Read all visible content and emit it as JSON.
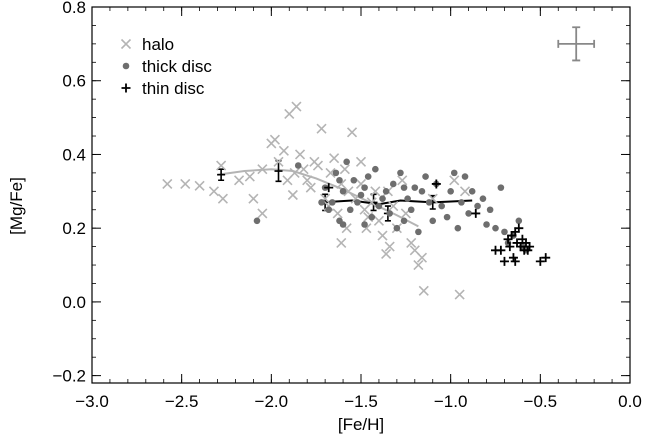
{
  "chart_data": {
    "type": "scatter",
    "xlabel": "[Fe/H]",
    "ylabel": "[Mg/Fe]",
    "xlim": [
      -3.0,
      0.0
    ],
    "ylim": [
      -0.22,
      0.8
    ],
    "xticks": [
      -3.0,
      -2.5,
      -2.0,
      -1.5,
      -1.0,
      -0.5,
      0.0
    ],
    "xtick_labels": [
      "−3.0",
      "−2.5",
      "−2.0",
      "−1.5",
      "−1.0",
      "−0.5",
      "0.0"
    ],
    "yticks": [
      -0.2,
      0.0,
      0.2,
      0.4,
      0.6,
      0.8
    ],
    "ytick_labels": [
      "−0.2",
      "0.0",
      "0.2",
      "0.4",
      "0.6",
      "0.8"
    ],
    "legend_position": "top-left",
    "series": [
      {
        "name": "halo",
        "marker": "x",
        "color": "#b4b4b4",
        "points": [
          [
            -2.58,
            0.32
          ],
          [
            -2.48,
            0.32
          ],
          [
            -2.4,
            0.315
          ],
          [
            -2.32,
            0.3
          ],
          [
            -2.28,
            0.37
          ],
          [
            -2.27,
            0.28
          ],
          [
            -2.18,
            0.33
          ],
          [
            -2.12,
            0.34
          ],
          [
            -2.1,
            0.28
          ],
          [
            -2.05,
            0.36
          ],
          [
            -2.0,
            0.43
          ],
          [
            -1.98,
            0.44
          ],
          [
            -1.96,
            0.38
          ],
          [
            -1.93,
            0.41
          ],
          [
            -1.91,
            0.33
          ],
          [
            -1.9,
            0.51
          ],
          [
            -1.88,
            0.29
          ],
          [
            -1.87,
            0.35
          ],
          [
            -1.86,
            0.53
          ],
          [
            -1.84,
            0.4
          ],
          [
            -1.82,
            0.36
          ],
          [
            -1.8,
            0.33
          ],
          [
            -1.78,
            0.31
          ],
          [
            -1.76,
            0.38
          ],
          [
            -1.74,
            0.37
          ],
          [
            -1.72,
            0.47
          ],
          [
            -1.7,
            0.28
          ],
          [
            -1.68,
            0.26
          ],
          [
            -1.67,
            0.35
          ],
          [
            -1.65,
            0.39
          ],
          [
            -1.63,
            0.24
          ],
          [
            -1.61,
            0.32
          ],
          [
            -1.59,
            0.36
          ],
          [
            -1.57,
            0.3
          ],
          [
            -1.55,
            0.46
          ],
          [
            -1.53,
            0.28
          ],
          [
            -1.5,
            0.38
          ],
          [
            -1.48,
            0.25
          ],
          [
            -1.46,
            0.23
          ],
          [
            -1.44,
            0.27
          ],
          [
            -1.42,
            0.3
          ],
          [
            -1.4,
            0.22
          ],
          [
            -1.38,
            0.18
          ],
          [
            -1.36,
            0.13
          ],
          [
            -1.34,
            0.15
          ],
          [
            -1.32,
            0.26
          ],
          [
            -1.3,
            0.2
          ],
          [
            -1.27,
            0.33
          ],
          [
            -1.25,
            0.24
          ],
          [
            -1.22,
            0.16
          ],
          [
            -1.2,
            0.14
          ],
          [
            -1.18,
            0.1
          ],
          [
            -1.16,
            0.12
          ],
          [
            -1.15,
            0.03
          ],
          [
            -1.1,
            0.28
          ],
          [
            -0.95,
            0.02
          ],
          [
            -0.92,
            0.3
          ],
          [
            -0.98,
            0.33
          ],
          [
            -2.05,
            0.24
          ],
          [
            -1.61,
            0.16
          ],
          [
            -1.58,
            0.2
          ],
          [
            -1.47,
            0.2
          ],
          [
            -1.5,
            0.32
          ],
          [
            -1.35,
            0.3
          ]
        ]
      },
      {
        "name": "thick disc",
        "marker": "dot",
        "color": "#6e6e6e",
        "points": [
          [
            -2.08,
            0.22
          ],
          [
            -1.85,
            0.37
          ],
          [
            -1.72,
            0.27
          ],
          [
            -1.7,
            0.31
          ],
          [
            -1.68,
            0.25
          ],
          [
            -1.66,
            0.27
          ],
          [
            -1.64,
            0.35
          ],
          [
            -1.62,
            0.33
          ],
          [
            -1.6,
            0.21
          ],
          [
            -1.58,
            0.38
          ],
          [
            -1.56,
            0.25
          ],
          [
            -1.54,
            0.33
          ],
          [
            -1.52,
            0.27
          ],
          [
            -1.5,
            0.29
          ],
          [
            -1.48,
            0.31
          ],
          [
            -1.46,
            0.34
          ],
          [
            -1.44,
            0.23
          ],
          [
            -1.42,
            0.36
          ],
          [
            -1.4,
            0.26
          ],
          [
            -1.38,
            0.28
          ],
          [
            -1.36,
            0.3
          ],
          [
            -1.34,
            0.24
          ],
          [
            -1.32,
            0.32
          ],
          [
            -1.3,
            0.2
          ],
          [
            -1.28,
            0.35
          ],
          [
            -1.26,
            0.22
          ],
          [
            -1.24,
            0.28
          ],
          [
            -1.22,
            0.25
          ],
          [
            -1.2,
            0.31
          ],
          [
            -1.18,
            0.19
          ],
          [
            -1.16,
            0.3
          ],
          [
            -1.14,
            0.34
          ],
          [
            -1.12,
            0.27
          ],
          [
            -1.1,
            0.22
          ],
          [
            -1.08,
            0.32
          ],
          [
            -1.05,
            0.26
          ],
          [
            -1.02,
            0.23
          ],
          [
            -1.0,
            0.3
          ],
          [
            -0.98,
            0.35
          ],
          [
            -0.96,
            0.2
          ],
          [
            -0.94,
            0.27
          ],
          [
            -0.92,
            0.34
          ],
          [
            -0.9,
            0.24
          ],
          [
            -0.88,
            0.3
          ],
          [
            -0.85,
            0.26
          ],
          [
            -0.82,
            0.28
          ],
          [
            -0.8,
            0.21
          ],
          [
            -0.78,
            0.25
          ],
          [
            -0.75,
            0.2
          ],
          [
            -0.72,
            0.31
          ],
          [
            -0.7,
            0.19
          ],
          [
            -0.68,
            0.16
          ],
          [
            -0.65,
            0.18
          ],
          [
            -0.62,
            0.22
          ],
          [
            -0.6,
            0.15
          ],
          [
            -0.58,
            0.14
          ],
          [
            -1.62,
            0.22
          ],
          [
            -1.48,
            0.21
          ],
          [
            -1.26,
            0.31
          ],
          [
            -1.6,
            0.3
          ]
        ]
      },
      {
        "name": "thin disc",
        "marker": "plus",
        "color": "#000000",
        "points": [
          [
            -0.75,
            0.14
          ],
          [
            -0.72,
            0.14
          ],
          [
            -0.7,
            0.11
          ],
          [
            -0.68,
            0.17
          ],
          [
            -0.67,
            0.15
          ],
          [
            -0.66,
            0.18
          ],
          [
            -0.65,
            0.12
          ],
          [
            -0.64,
            0.19
          ],
          [
            -0.63,
            0.16
          ],
          [
            -0.62,
            0.2
          ],
          [
            -0.61,
            0.15
          ],
          [
            -0.6,
            0.17
          ],
          [
            -0.59,
            0.14
          ],
          [
            -0.58,
            0.16
          ],
          [
            -0.57,
            0.14
          ],
          [
            -0.56,
            0.15
          ],
          [
            -0.5,
            0.11
          ],
          [
            -0.47,
            0.12
          ],
          [
            -0.64,
            0.11
          ],
          [
            -0.86,
            0.24
          ],
          [
            -1.68,
            0.31
          ],
          [
            -1.08,
            0.32
          ]
        ]
      }
    ],
    "trend_lines": [
      {
        "color": "#b4b4b4",
        "points": [
          [
            -2.3,
            0.345
          ],
          [
            -2.15,
            0.355
          ],
          [
            -2.0,
            0.36
          ],
          [
            -1.88,
            0.355
          ],
          [
            -1.75,
            0.335
          ],
          [
            -1.6,
            0.305
          ],
          [
            -1.45,
            0.27
          ],
          [
            -1.3,
            0.235
          ],
          [
            -1.18,
            0.205
          ]
        ]
      },
      {
        "color": "#000000",
        "points": [
          [
            -1.72,
            0.27
          ],
          [
            -1.55,
            0.275
          ],
          [
            -1.4,
            0.265
          ],
          [
            -1.28,
            0.275
          ],
          [
            -1.1,
            0.27
          ],
          [
            -0.88,
            0.275
          ]
        ]
      }
    ],
    "binned_errors": [
      {
        "x": -2.28,
        "y": 0.345,
        "yerr": 0.015
      },
      {
        "x": -1.96,
        "y": 0.355,
        "yerr": 0.028
      },
      {
        "x": -1.7,
        "y": 0.27,
        "yerr": 0.022
      },
      {
        "x": -1.43,
        "y": 0.27,
        "yerr": 0.022
      },
      {
        "x": -1.35,
        "y": 0.24,
        "yerr": 0.02
      },
      {
        "x": -1.1,
        "y": 0.27,
        "yerr": 0.018
      }
    ],
    "typical_error": {
      "x": -0.3,
      "y": 0.7,
      "xerr": 0.1,
      "yerr": 0.045,
      "color": "#888888"
    }
  }
}
